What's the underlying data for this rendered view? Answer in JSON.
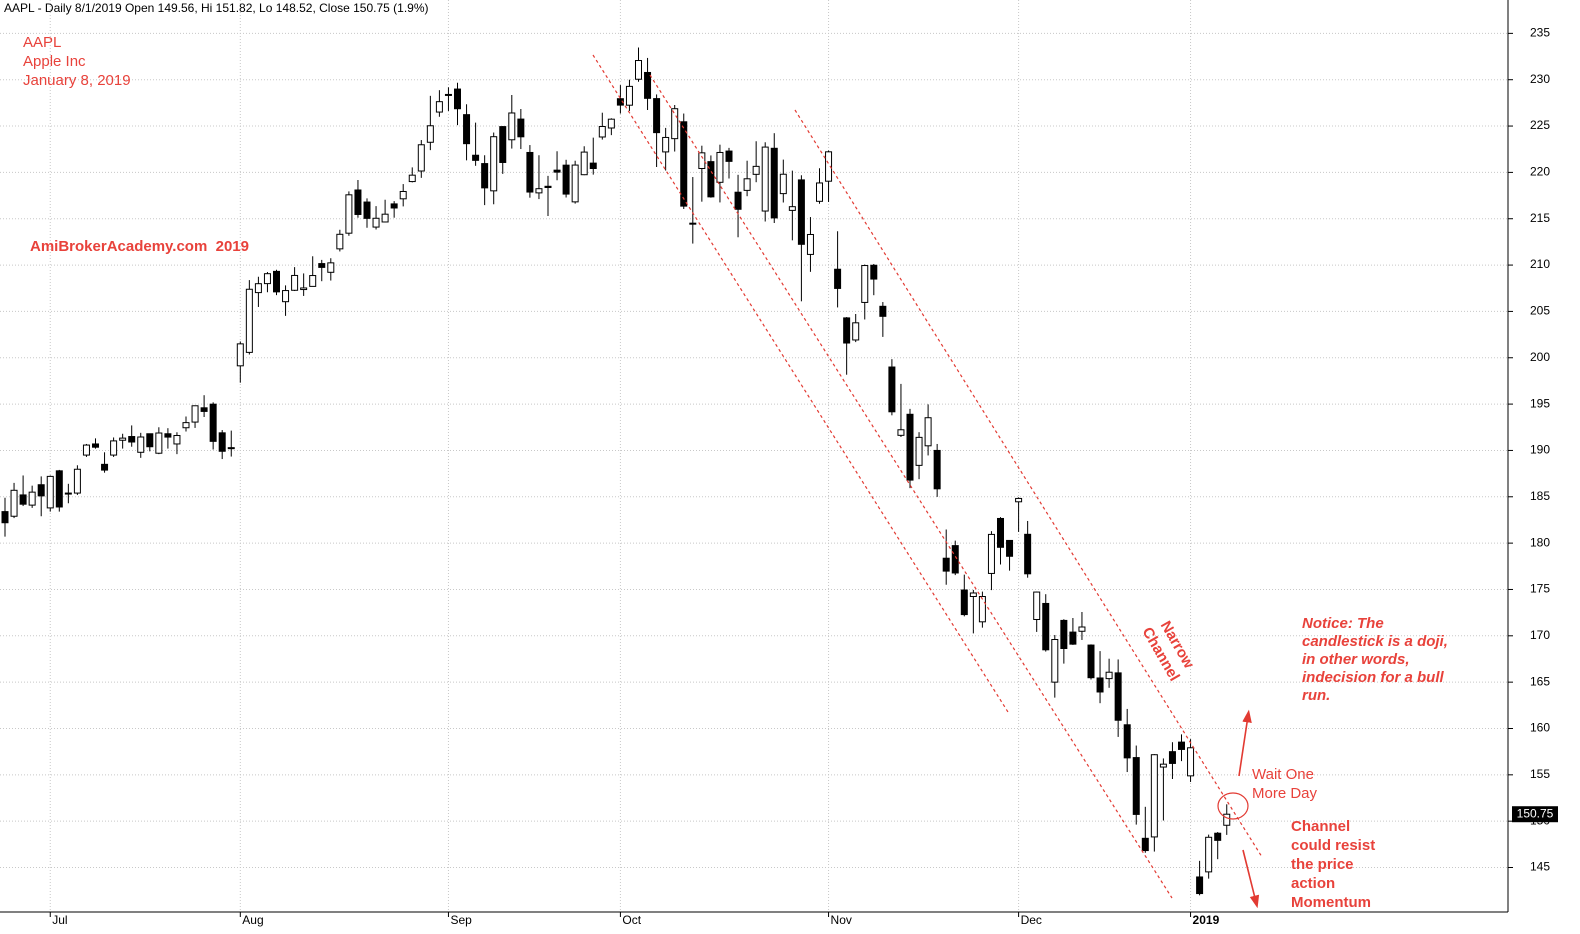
{
  "chart_data": {
    "type": "candlestick",
    "title": "AAPL - Daily 8/1/2019 Open 149.56, Hi 151.82, Lo 148.52, Close 150.75 (1.9%)",
    "annotations": {
      "symbol": "AAPL",
      "company": "Apple Inc",
      "date": "January 8, 2019",
      "site": "AmiBrokerAcademy.com  2019",
      "channel": [
        "Narrow",
        "Channel"
      ],
      "notice": [
        "Notice: The",
        "candlestick is a doji,",
        "in other words,",
        "indecision for a bull",
        "run."
      ],
      "wait": [
        "Wait One",
        "More Day"
      ],
      "resist": [
        "Channel",
        "could resist",
        "the price",
        "action",
        "Momentum"
      ]
    },
    "last_price": 150.75,
    "ylim": [
      140.2,
      238.6
    ],
    "yticks": [
      145,
      150,
      155,
      160,
      165,
      170,
      175,
      180,
      185,
      190,
      195,
      200,
      205,
      210,
      215,
      220,
      225,
      230,
      235
    ],
    "grid": true,
    "up_color": "#ffffff",
    "down_color": "#000000",
    "categories": [
      null,
      null,
      null,
      null,
      null,
      "Jul",
      null,
      null,
      null,
      null,
      null,
      null,
      null,
      null,
      null,
      null,
      null,
      null,
      null,
      null,
      null,
      null,
      null,
      null,
      null,
      null,
      "Aug",
      null,
      null,
      null,
      null,
      null,
      null,
      null,
      null,
      null,
      null,
      null,
      null,
      null,
      null,
      null,
      null,
      null,
      null,
      null,
      null,
      null,
      null,
      "Sep",
      null,
      null,
      null,
      null,
      null,
      null,
      null,
      null,
      null,
      null,
      null,
      null,
      null,
      null,
      null,
      null,
      null,
      null,
      "Oct",
      null,
      null,
      null,
      null,
      null,
      null,
      null,
      null,
      null,
      null,
      null,
      null,
      null,
      null,
      null,
      null,
      null,
      null,
      null,
      null,
      null,
      null,
      "Nov",
      null,
      null,
      null,
      null,
      null,
      null,
      null,
      null,
      null,
      null,
      null,
      null,
      null,
      null,
      null,
      null,
      null,
      null,
      null,
      null,
      "Dec",
      null,
      null,
      null,
      null,
      null,
      null,
      null,
      null,
      null,
      null,
      null,
      null,
      null,
      null,
      null,
      null,
      null,
      null,
      "2019",
      null,
      null,
      null,
      null
    ],
    "open": [
      183.4,
      182.9,
      185.2,
      184.1,
      186.3,
      183.8,
      187.8,
      185.3,
      185.4,
      189.5,
      190.7,
      188.5,
      189.5,
      191.1,
      191.5,
      189.8,
      191.8,
      189.7,
      191.8,
      190.7,
      192.45,
      193.06,
      194.6,
      194.99,
      191.9,
      190.3,
      199.13,
      200.58,
      207.03,
      208,
      209.32,
      206.05,
      207.28,
      207.36,
      207.7,
      210.16,
      209.22,
      211.75,
      213.44,
      218.1,
      216.8,
      214.1,
      214.65,
      216.6,
      217.15,
      219.01,
      220.15,
      223.25,
      226.51,
      228.41,
      228.99,
      226.23,
      221.85,
      220.95,
      218.01,
      224.94,
      223.52,
      225.75,
      222.15,
      217.79,
      218.5,
      220.24,
      220.78,
      216.82,
      219.75,
      221,
      223.82,
      224.79,
      227.95,
      227.25,
      230.05,
      230.78,
      227.96,
      222.21,
      223.64,
      225.46,
      214.52,
      220.42,
      221.16,
      218.93,
      222.3,
      217.86,
      218.06,
      219.79,
      215.83,
      222.6,
      217.71,
      215.9,
      219.19,
      211.15,
      216.88,
      219.05,
      209.55,
      204.3,
      201.92,
      205.97,
      209.98,
      205.55,
      199,
      191.63,
      193.9,
      188.39,
      190.5,
      190,
      178.37,
      179.73,
      174.94,
      174.24,
      171.51,
      176.73,
      182.66,
      180.29,
      184.46,
      180.95,
      171.76,
      173.49,
      165,
      171.66,
      170.4,
      170.49,
      169,
      165.45,
      165.38,
      166,
      160.4,
      156.86,
      148.15,
      148.3,
      155.84,
      157.5,
      158.53,
      154.89,
      143.98,
      144.53,
      148.7,
      149.56
    ],
    "high": [
      184.9,
      186.5,
      187.3,
      186.2,
      187.2,
      187.3,
      187.9,
      186.4,
      188.4,
      190.7,
      191.3,
      189.8,
      191.4,
      191.8,
      192.7,
      191.9,
      191.8,
      192.5,
      192.4,
      191.96,
      193.66,
      194.85,
      195.96,
      195.19,
      192.2,
      192.14,
      201.76,
      208.38,
      208.74,
      209.25,
      209.5,
      207.81,
      209.78,
      209.1,
      210.95,
      210.56,
      210.74,
      213.81,
      217.95,
      219.18,
      217.19,
      216.36,
      217.05,
      216.9,
      218.74,
      220.54,
      223.49,
      228.26,
      228.87,
      229.18,
      229.67,
      227.35,
      225.37,
      221.85,
      224.3,
      225,
      228.35,
      226.84,
      222.95,
      221.85,
      219.62,
      222.28,
      221.36,
      221.26,
      222.82,
      223.75,
      226.44,
      225.84,
      229.42,
      230,
      233.47,
      232.35,
      228.41,
      224.8,
      227.27,
      226.35,
      219.5,
      222.88,
      221.83,
      222.99,
      222.64,
      219.74,
      221.26,
      223.36,
      223.25,
      224.23,
      221.38,
      220.19,
      219.69,
      215.18,
      220.45,
      222.36,
      213.65,
      204.39,
      204.72,
      210.06,
      210.12,
      206.01,
      199.85,
      197.18,
      194.48,
      191.97,
      194.97,
      190.7,
      181.47,
      180.27,
      176.6,
      174.95,
      174.77,
      181.29,
      182.8,
      180.33,
      184.94,
      182.39,
      174.78,
      174.49,
      170.09,
      171.79,
      171.92,
      172.57,
      169.08,
      168.35,
      167.53,
      167.45,
      162.11,
      158.16,
      151.55,
      157.23,
      156.77,
      158.52,
      159.36,
      158.85,
      145.72,
      148.55,
      148.83,
      151.82
    ],
    "low": [
      180.7,
      182.7,
      184,
      183.8,
      182.9,
      183.4,
      183.4,
      184.3,
      185.2,
      189.3,
      190.2,
      187.6,
      189.3,
      190.2,
      190.4,
      189.2,
      189.9,
      189.6,
      190.2,
      189.6,
      192.05,
      192.43,
      193.61,
      190.1,
      189.07,
      189.34,
      197.31,
      200.35,
      205.48,
      207.07,
      206.76,
      204.52,
      207.2,
      206.67,
      207.7,
      208.26,
      208.33,
      211.47,
      213.16,
      215.11,
      214.03,
      213.84,
      214.6,
      215.11,
      216.33,
      218.92,
      219.41,
      222.4,
      226,
      226.63,
      225.1,
      221.3,
      220.71,
      216.47,
      216.56,
      219.84,
      222.57,
      222.52,
      217.27,
      217.12,
      215.3,
      219.15,
      217.29,
      216.63,
      219.7,
      219.76,
      223.54,
      224.02,
      226.35,
      226.63,
      229.78,
      226.73,
      220.58,
      220.2,
      222.25,
      216.05,
      212.32,
      216.84,
      217.27,
      216.76,
      219.34,
      213,
      217.43,
      218.94,
      214.7,
      214.54,
      216.75,
      212.67,
      206.09,
      209.27,
      216.62,
      216.81,
      205.43,
      198.17,
      201.69,
      204.13,
      206.75,
      202.25,
      193.79,
      191.45,
      185.93,
      186.9,
      189.46,
      184.99,
      175.51,
      176.55,
      172.1,
      170.26,
      170.88,
      174.93,
      177.7,
      177.03,
      181.21,
      176.27,
      170.42,
      168.3,
      163.33,
      167,
      169.02,
      169.55,
      165.28,
      162.73,
      164.39,
      159.09,
      155.3,
      149.63,
      146.59,
      146.72,
      150.07,
      154.55,
      156.48,
      154.23,
      142,
      143.8,
      145.9,
      148.52
    ],
    "close": [
      182.2,
      185.7,
      184.2,
      185.5,
      185.1,
      187.2,
      183.9,
      185.4,
      187.97,
      190.58,
      190.35,
      187.88,
      191.03,
      191.33,
      190.91,
      191.45,
      190.4,
      191.88,
      191.44,
      191.61,
      193,
      194.82,
      194.21,
      190.98,
      189.91,
      190.29,
      201.5,
      207.39,
      207.99,
      209.07,
      207.11,
      207.25,
      208.88,
      207.53,
      208.87,
      209.75,
      210.24,
      213.32,
      217.58,
      215.46,
      215.04,
      215.05,
      215.49,
      216.16,
      217.94,
      219.7,
      222.98,
      225.03,
      227.63,
      228.36,
      226.87,
      223.1,
      221.3,
      218.33,
      223.85,
      221.07,
      226.41,
      223.84,
      217.88,
      218.24,
      218.37,
      220.03,
      217.66,
      220.79,
      222.19,
      220.42,
      224.95,
      225.74,
      227.26,
      229.28,
      232.07,
      227.99,
      224.29,
      223.77,
      226.87,
      216.36,
      214.45,
      222.11,
      217.36,
      222.15,
      221.19,
      216.02,
      219.31,
      220.65,
      222.73,
      215.09,
      219.8,
      216.3,
      212.24,
      213.3,
      218.86,
      222.22,
      207.48,
      201.59,
      203.77,
      209.95,
      208.49,
      204.47,
      194.17,
      192.23,
      186.8,
      191.41,
      193.53,
      185.86,
      176.98,
      176.78,
      172.29,
      174.62,
      174.24,
      180.94,
      179.55,
      178.58,
      184.82,
      176.69,
      174.72,
      168.49,
      169.6,
      168.63,
      169.1,
      170.95,
      165.48,
      163.94,
      166.07,
      160.89,
      156.83,
      150.73,
      146.83,
      157.17,
      156.15,
      156.23,
      157.74,
      157.92,
      142.19,
      148.26,
      147.93,
      150.75
    ]
  }
}
